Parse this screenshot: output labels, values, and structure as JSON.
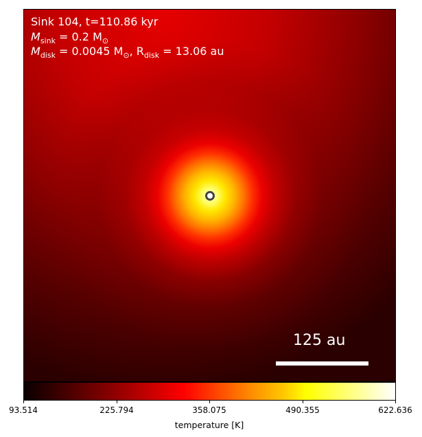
{
  "panel": {
    "title_line1": "Sink 104, t=110.86 kyr",
    "sink_mass_symbol": "M",
    "sink_mass_sub": "sink",
    "sink_mass_value": " = 0.2 M",
    "sink_mass_unit_sub": "⊙",
    "disk_mass_symbol": "M",
    "disk_mass_sub": "disk",
    "disk_mass_value": " = 0.0045 M",
    "disk_mass_unit_sub": "⊙",
    "disk_radius_prefix": ", R",
    "disk_radius_sub": "disk",
    "disk_radius_value": " = 13.06 au",
    "scale_bar_label": "125 au"
  },
  "colorbar": {
    "colormap": "hot",
    "min": 93.514,
    "max": 622.636,
    "ticks": [
      "93.514",
      "225.794",
      "358.075",
      "490.355",
      "622.636"
    ],
    "label": "temperature [K]"
  },
  "colors": {
    "sink_marker_edge": "#444444",
    "sink_marker_fill": "#ffffff",
    "text": "#ffffff"
  }
}
